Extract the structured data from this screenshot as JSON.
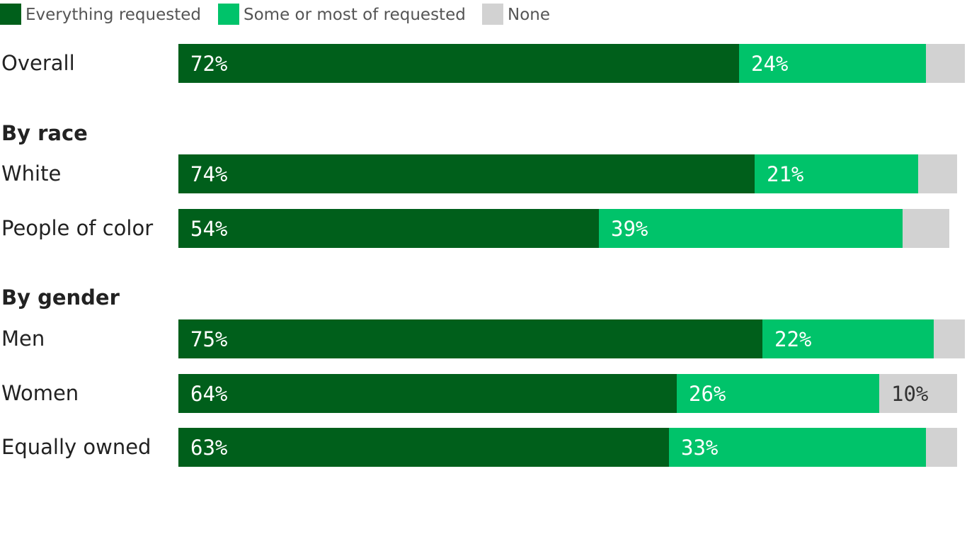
{
  "legend": [
    {
      "label": "Everything requested",
      "color": "#005f1b"
    },
    {
      "label": "Some or most of requested",
      "color": "#00c36a"
    },
    {
      "label": "None",
      "color": "#d2d2d2"
    }
  ],
  "chart_data": {
    "type": "bar",
    "orientation": "horizontal",
    "stacked": true,
    "xlim": [
      0,
      100
    ],
    "legend_position": "top-left",
    "groups": [
      {
        "heading": "",
        "categories": [
          "Overall"
        ]
      },
      {
        "heading": "By race",
        "categories": [
          "White",
          "People of color"
        ]
      },
      {
        "heading": "By gender",
        "categories": [
          "Men",
          "Women",
          "Equally owned"
        ]
      }
    ],
    "categories": [
      "Overall",
      "White",
      "People of color",
      "Men",
      "Women",
      "Equally owned"
    ],
    "series": [
      {
        "name": "Everything requested",
        "color": "#005f1b",
        "values": [
          72,
          74,
          54,
          75,
          64,
          63
        ]
      },
      {
        "name": "Some or most of requested",
        "color": "#00c36a",
        "values": [
          24,
          21,
          39,
          22,
          26,
          33
        ]
      },
      {
        "name": "None",
        "color": "#d2d2d2",
        "values": [
          5,
          5,
          6,
          4,
          10,
          4
        ]
      }
    ],
    "data_labels": [
      [
        "72%",
        "24%",
        ""
      ],
      [
        "74%",
        "21%",
        ""
      ],
      [
        "54%",
        "39%",
        ""
      ],
      [
        "75%",
        "22%",
        ""
      ],
      [
        "64%",
        "26%",
        "10%"
      ],
      [
        "63%",
        "33%",
        ""
      ]
    ]
  }
}
